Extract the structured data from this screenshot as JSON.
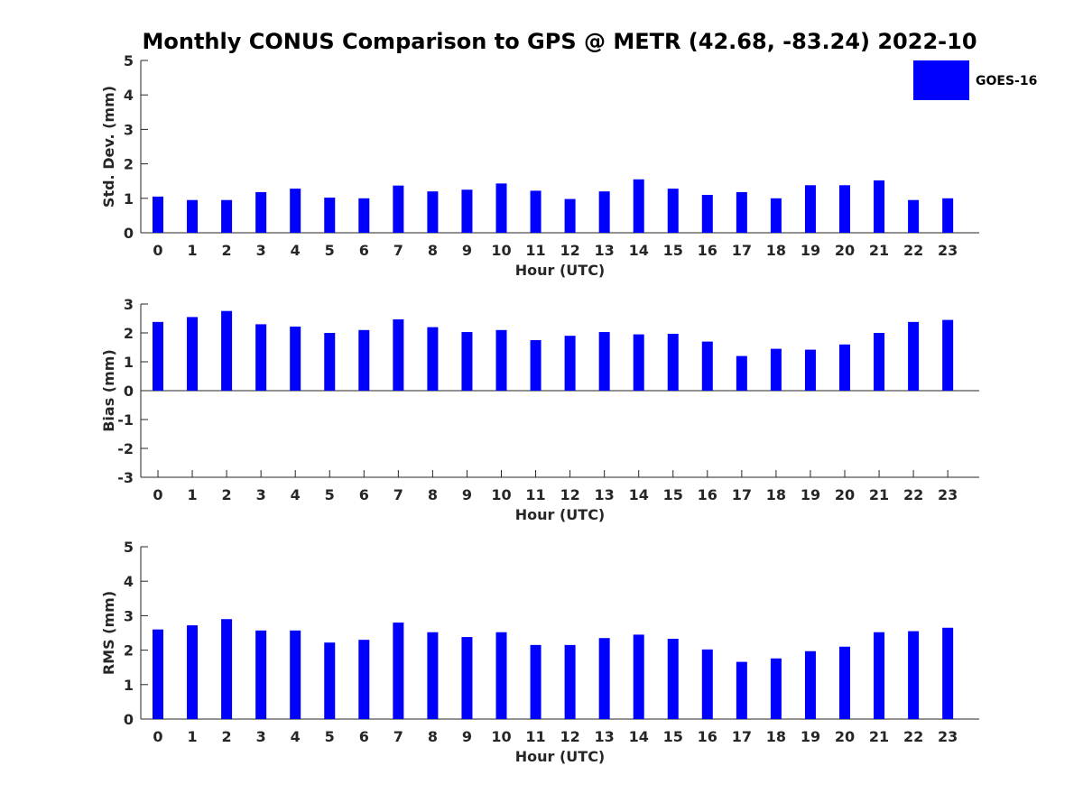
{
  "title": "Monthly CONUS Comparison to GPS @ METR (42.68, -83.24) 2022-10",
  "bar_color": "#0000ff",
  "legend": {
    "label": "GOES-16",
    "placement": "top-right"
  },
  "chart_data": [
    {
      "type": "bar",
      "categories": [
        "0",
        "1",
        "2",
        "3",
        "4",
        "5",
        "6",
        "7",
        "8",
        "9",
        "10",
        "11",
        "12",
        "13",
        "14",
        "15",
        "16",
        "17",
        "18",
        "19",
        "20",
        "21",
        "22",
        "23"
      ],
      "series": [
        {
          "name": "GOES-16",
          "values": [
            1.05,
            0.95,
            0.95,
            1.18,
            1.28,
            1.02,
            1.0,
            1.37,
            1.2,
            1.25,
            1.43,
            1.22,
            0.98,
            1.2,
            1.55,
            1.28,
            1.1,
            1.18,
            1.0,
            1.38,
            1.38,
            1.52,
            0.95,
            1.0
          ]
        }
      ],
      "xlabel": "Hour (UTC)",
      "ylabel": "Std. Dev. (mm)",
      "ylim": [
        0,
        5
      ],
      "yticks": [
        0,
        1,
        2,
        3,
        4,
        5
      ],
      "grid": false
    },
    {
      "type": "bar",
      "categories": [
        "0",
        "1",
        "2",
        "3",
        "4",
        "5",
        "6",
        "7",
        "8",
        "9",
        "10",
        "11",
        "12",
        "13",
        "14",
        "15",
        "16",
        "17",
        "18",
        "19",
        "20",
        "21",
        "22",
        "23"
      ],
      "series": [
        {
          "name": "GOES-16",
          "values": [
            2.38,
            2.55,
            2.76,
            2.3,
            2.22,
            2.0,
            2.1,
            2.47,
            2.2,
            2.03,
            2.1,
            1.75,
            1.9,
            2.03,
            1.95,
            1.97,
            1.7,
            1.2,
            1.45,
            1.42,
            1.6,
            2.0,
            2.38,
            2.45
          ]
        }
      ],
      "xlabel": "Hour (UTC)",
      "ylabel": "Bias (mm)",
      "ylim": [
        -3,
        3
      ],
      "yticks": [
        -3,
        -2,
        -1,
        0,
        1,
        2,
        3
      ],
      "grid": false
    },
    {
      "type": "bar",
      "categories": [
        "0",
        "1",
        "2",
        "3",
        "4",
        "5",
        "6",
        "7",
        "8",
        "9",
        "10",
        "11",
        "12",
        "13",
        "14",
        "15",
        "16",
        "17",
        "18",
        "19",
        "20",
        "21",
        "22",
        "23"
      ],
      "series": [
        {
          "name": "GOES-16",
          "values": [
            2.6,
            2.72,
            2.9,
            2.57,
            2.57,
            2.22,
            2.3,
            2.8,
            2.52,
            2.38,
            2.52,
            2.15,
            2.15,
            2.35,
            2.45,
            2.33,
            2.02,
            1.66,
            1.76,
            1.97,
            2.1,
            2.52,
            2.55,
            2.65
          ]
        }
      ],
      "xlabel": "Hour (UTC)",
      "ylabel": "RMS (mm)",
      "ylim": [
        0,
        5
      ],
      "yticks": [
        0,
        1,
        2,
        3,
        4,
        5
      ],
      "grid": false
    }
  ]
}
